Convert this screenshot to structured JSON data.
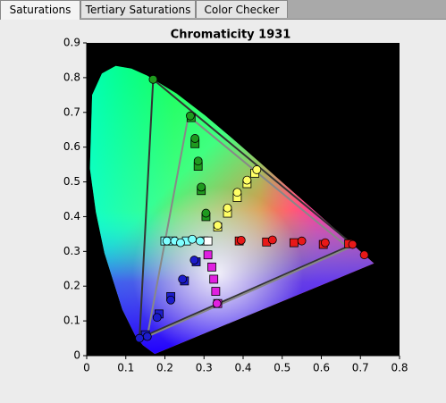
{
  "tabs": [
    "Saturations",
    "Tertiary Saturations",
    "Color Checker"
  ],
  "chart_data": {
    "type": "scatter",
    "title": "Chromaticity 1931",
    "xlim": [
      0,
      0.8
    ],
    "ylim": [
      0,
      0.9
    ],
    "xticks": [
      0,
      0.1,
      0.2,
      0.3,
      0.4,
      0.5,
      0.6,
      0.7,
      0.8
    ],
    "yticks": [
      0,
      0.1,
      0.2,
      0.3,
      0.4,
      0.5,
      0.6,
      0.7,
      0.8,
      0.9
    ],
    "gamuts": [
      {
        "color": "#333333",
        "x": [
          0.17,
          0.68,
          0.135
        ],
        "y": [
          0.795,
          0.32,
          0.05
        ]
      },
      {
        "color": "#888888",
        "x": [
          0.26,
          0.67,
          0.155
        ],
        "y": [
          0.69,
          0.31,
          0.055
        ]
      }
    ],
    "series": [
      {
        "marker": "square",
        "color": "#1e9a1e",
        "x": [
          0.267,
          0.277,
          0.285,
          0.293,
          0.305
        ],
        "y": [
          0.685,
          0.61,
          0.545,
          0.475,
          0.4
        ]
      },
      {
        "marker": "circle",
        "color": "#1e9a1e",
        "x": [
          0.17,
          0.265,
          0.277,
          0.285,
          0.293,
          0.305
        ],
        "y": [
          0.795,
          0.69,
          0.625,
          0.56,
          0.485,
          0.41
        ]
      },
      {
        "marker": "square",
        "color": "#ffff66",
        "x": [
          0.43,
          0.41,
          0.385,
          0.36,
          0.335
        ],
        "y": [
          0.525,
          0.495,
          0.455,
          0.41,
          0.37
        ]
      },
      {
        "marker": "circle",
        "color": "#ffff66",
        "x": [
          0.435,
          0.41,
          0.385,
          0.36,
          0.335
        ],
        "y": [
          0.535,
          0.505,
          0.47,
          0.425,
          0.375
        ]
      },
      {
        "marker": "square",
        "color": "#e81818",
        "x": [
          0.67,
          0.605,
          0.53,
          0.46,
          0.39
        ],
        "y": [
          0.322,
          0.32,
          0.325,
          0.327,
          0.33
        ]
      },
      {
        "marker": "circle",
        "color": "#e81818",
        "x": [
          0.71,
          0.68,
          0.61,
          0.55,
          0.475,
          0.395
        ],
        "y": [
          0.29,
          0.32,
          0.325,
          0.33,
          0.333,
          0.332
        ]
      },
      {
        "marker": "square",
        "color": "#e020e0",
        "x": [
          0.31,
          0.32,
          0.325,
          0.33,
          0.335
        ],
        "y": [
          0.29,
          0.255,
          0.22,
          0.185,
          0.15
        ]
      },
      {
        "marker": "circle",
        "color": "#e020e0",
        "x": [
          0.333
        ],
        "y": [
          0.15
        ]
      },
      {
        "marker": "square",
        "color": "#1c1ccc",
        "x": [
          0.15,
          0.185,
          0.215,
          0.25,
          0.28
        ],
        "y": [
          0.06,
          0.12,
          0.17,
          0.215,
          0.27
        ]
      },
      {
        "marker": "circle",
        "color": "#1c1ccc",
        "x": [
          0.135,
          0.155,
          0.18,
          0.215,
          0.245,
          0.275
        ],
        "y": [
          0.05,
          0.055,
          0.11,
          0.16,
          0.22,
          0.275
        ]
      },
      {
        "marker": "square",
        "color": "#7fffff",
        "x": [
          0.2,
          0.22,
          0.255,
          0.3
        ],
        "y": [
          0.33,
          0.33,
          0.33,
          0.33
        ]
      },
      {
        "marker": "square",
        "color": "#ffffff",
        "x": [
          0.31
        ],
        "y": [
          0.33
        ]
      },
      {
        "marker": "circle",
        "color": "#7fffff",
        "x": [
          0.205,
          0.225,
          0.24,
          0.27,
          0.29
        ],
        "y": [
          0.33,
          0.33,
          0.325,
          0.335,
          0.33
        ]
      }
    ]
  }
}
